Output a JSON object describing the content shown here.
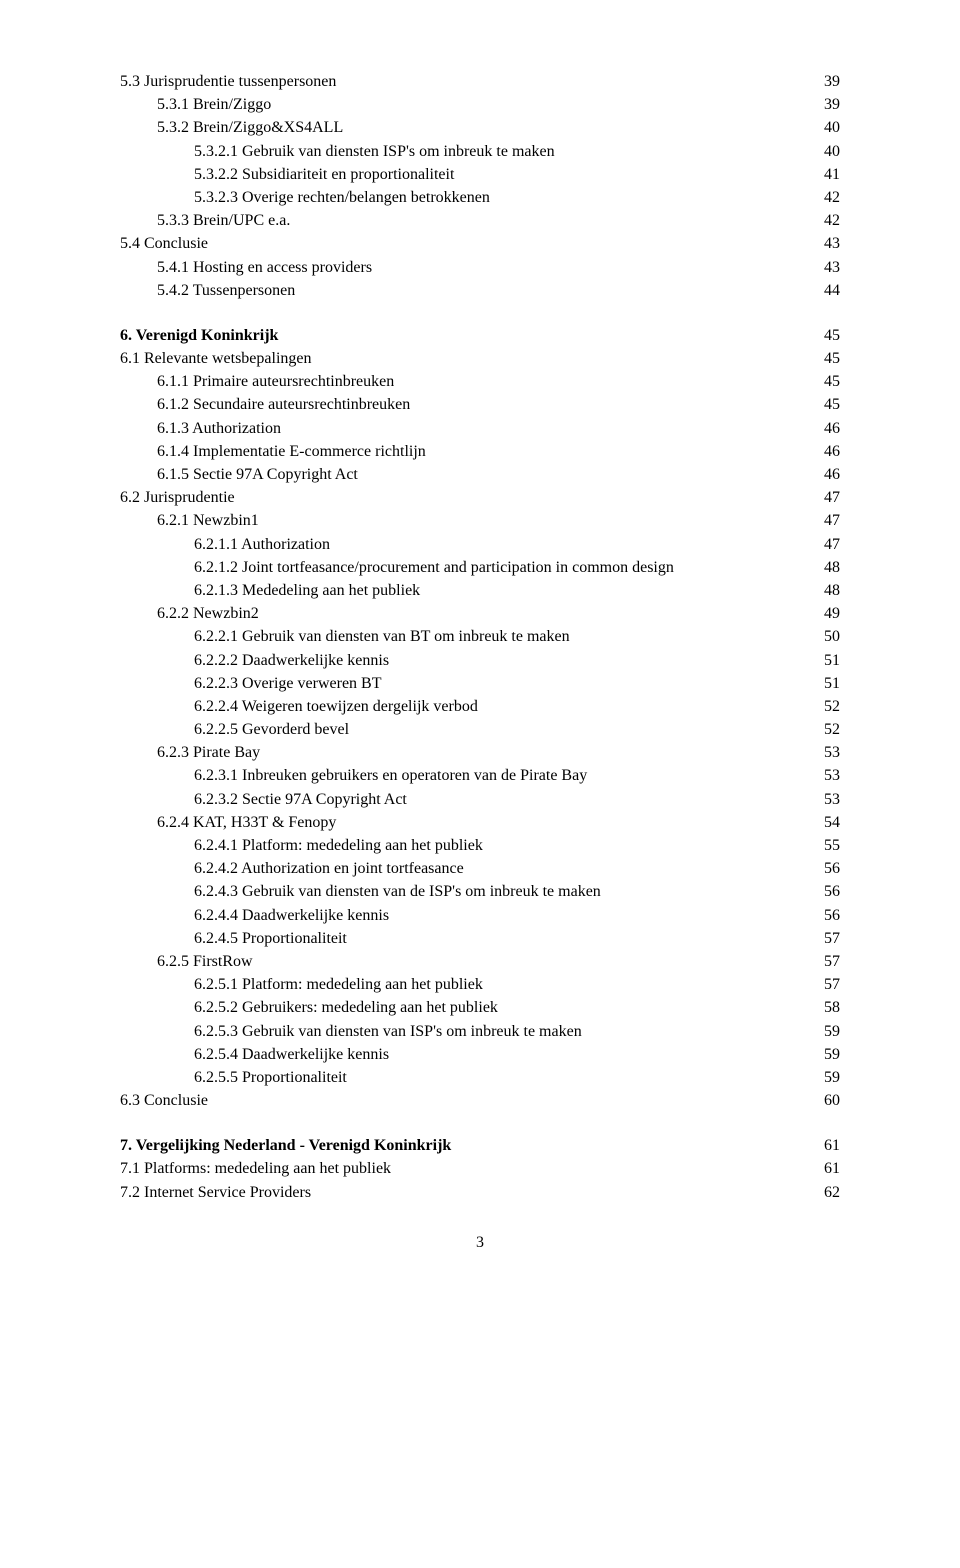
{
  "font_family": "Times New Roman",
  "font_size": 16,
  "text_color": "#000000",
  "background_color": "#ffffff",
  "page_number": "3",
  "rows": [
    {
      "indent": 0,
      "label": "5.3 Jurisprudentie tussenpersonen",
      "page": "39"
    },
    {
      "indent": 1,
      "label": "5.3.1 Brein/Ziggo",
      "page": "39"
    },
    {
      "indent": 1,
      "label": "5.3.2 Brein/Ziggo&XS4ALL",
      "page": "40"
    },
    {
      "indent": 2,
      "label": "5.3.2.1 Gebruik van diensten ISP's om inbreuk te maken",
      "page": "40"
    },
    {
      "indent": 2,
      "label": "5.3.2.2 Subsidiariteit en proportionaliteit",
      "page": "41"
    },
    {
      "indent": 2,
      "label": "5.3.2.3 Overige rechten/belangen betrokkenen",
      "page": "42"
    },
    {
      "indent": 1,
      "label": "5.3.3 Brein/UPC e.a.",
      "page": "42"
    },
    {
      "indent": 0,
      "label": "5.4 Conclusie",
      "page": "43"
    },
    {
      "indent": 1,
      "label": "5.4.1 Hosting en access providers",
      "page": "43"
    },
    {
      "indent": 1,
      "label": "5.4.2 Tussenpersonen",
      "page": "44"
    },
    {
      "spacer": true
    },
    {
      "indent": 0,
      "bold": true,
      "label": "6. Verenigd Koninkrijk",
      "page": "45"
    },
    {
      "indent": 0,
      "label": "6.1 Relevante wetsbepalingen",
      "page": "45"
    },
    {
      "indent": 1,
      "label": "6.1.1 Primaire auteursrechtinbreuken",
      "page": "45"
    },
    {
      "indent": 1,
      "label": "6.1.2 Secundaire auteursrechtinbreuken",
      "page": "45"
    },
    {
      "indent": 1,
      "label": "6.1.3 Authorization",
      "page": "46"
    },
    {
      "indent": 1,
      "label": "6.1.4 Implementatie E-commerce richtlijn",
      "page": "46"
    },
    {
      "indent": 1,
      "label": "6.1.5 Sectie 97A Copyright Act",
      "page": "46"
    },
    {
      "indent": 0,
      "label": "6.2 Jurisprudentie",
      "page": "47"
    },
    {
      "indent": 1,
      "label": "6.2.1 Newzbin1",
      "page": "47"
    },
    {
      "indent": 2,
      "label": "6.2.1.1 Authorization",
      "page": "47"
    },
    {
      "indent": 2,
      "label": "6.2.1.2 Joint tortfeasance/procurement and participation in common design",
      "page": "48"
    },
    {
      "indent": 2,
      "label": "6.2.1.3 Mededeling aan het publiek",
      "page": "48"
    },
    {
      "indent": 1,
      "label": "6.2.2 Newzbin2",
      "page": "49"
    },
    {
      "indent": 2,
      "label": "6.2.2.1 Gebruik van diensten van BT om inbreuk te maken",
      "page": "50"
    },
    {
      "indent": 2,
      "label": "6.2.2.2 Daadwerkelijke kennis",
      "page": "51"
    },
    {
      "indent": 2,
      "label": "6.2.2.3 Overige verweren BT",
      "page": "51"
    },
    {
      "indent": 2,
      "label": "6.2.2.4 Weigeren toewijzen dergelijk verbod",
      "page": "52"
    },
    {
      "indent": 2,
      "label": "6.2.2.5 Gevorderd bevel",
      "page": "52"
    },
    {
      "indent": 1,
      "label": "6.2.3 Pirate Bay",
      "page": "53"
    },
    {
      "indent": 2,
      "label": "6.2.3.1 Inbreuken gebruikers en operatoren van de Pirate Bay",
      "page": "53"
    },
    {
      "indent": 2,
      "label": "6.2.3.2 Sectie 97A Copyright Act",
      "page": "53"
    },
    {
      "indent": 1,
      "label": "6.2.4 KAT, H33T & Fenopy",
      "page": "54"
    },
    {
      "indent": 2,
      "label": "6.2.4.1 Platform: mededeling aan het publiek",
      "page": "55"
    },
    {
      "indent": 2,
      "label": "6.2.4.2 Authorization en joint tortfeasance",
      "page": "56"
    },
    {
      "indent": 2,
      "label": "6.2.4.3 Gebruik van diensten van de ISP's om inbreuk te maken",
      "page": "56"
    },
    {
      "indent": 2,
      "label": "6.2.4.4 Daadwerkelijke kennis",
      "page": "56"
    },
    {
      "indent": 2,
      "label": "6.2.4.5 Proportionaliteit",
      "page": "57"
    },
    {
      "indent": 1,
      "label": "6.2.5 FirstRow",
      "page": "57"
    },
    {
      "indent": 2,
      "label": "6.2.5.1 Platform: mededeling aan het publiek",
      "page": "57"
    },
    {
      "indent": 2,
      "label": "6.2.5.2 Gebruikers: mededeling aan het publiek",
      "page": "58"
    },
    {
      "indent": 2,
      "label": "6.2.5.3 Gebruik van diensten van ISP's om inbreuk te maken",
      "page": "59"
    },
    {
      "indent": 2,
      "label": "6.2.5.4 Daadwerkelijke kennis",
      "page": "59"
    },
    {
      "indent": 2,
      "label": "6.2.5.5 Proportionaliteit",
      "page": "59"
    },
    {
      "indent": 0,
      "label": "6.3 Conclusie",
      "page": "60"
    },
    {
      "spacer": true
    },
    {
      "indent": 0,
      "bold": true,
      "label": "7. Vergelijking Nederland - Verenigd Koninkrijk",
      "page": "61"
    },
    {
      "indent": 0,
      "label": "7.1 Platforms: mededeling aan het publiek",
      "page": "61"
    },
    {
      "indent": 0,
      "label": "7.2 Internet Service Providers",
      "page": "62"
    }
  ]
}
